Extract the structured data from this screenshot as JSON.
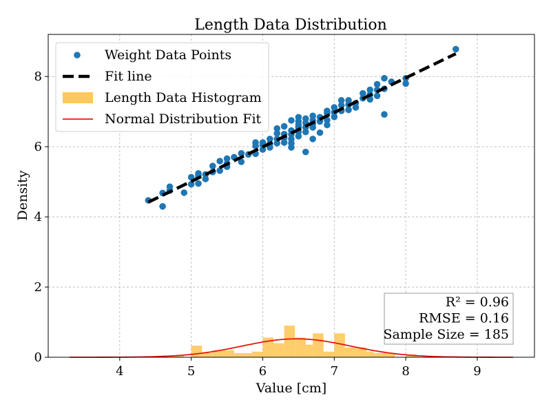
{
  "chart_data": {
    "type": "scatter",
    "title": "Length Data Distribution",
    "xlabel": "Value [cm]",
    "ylabel": "Density",
    "xlim": [
      3.0,
      9.8
    ],
    "ylim": [
      0,
      9.2
    ],
    "xticks": [
      4,
      5,
      6,
      7,
      8,
      9
    ],
    "yticks": [
      0,
      2,
      4,
      6,
      8
    ],
    "grid": true,
    "legend_position": "top-left",
    "colors": {
      "scatter": "#1f77b4",
      "fit_line": "#000000",
      "histogram": "#ffc85c",
      "normal_fit": "#e8140a"
    },
    "legend": [
      {
        "label": "Weight Data Points",
        "kind": "scatter"
      },
      {
        "label": "Fit line",
        "kind": "dashed-line"
      },
      {
        "label": "Length Data Histogram",
        "kind": "bar"
      },
      {
        "label": "Normal Distribution Fit",
        "kind": "line"
      }
    ],
    "series": [
      {
        "name": "Weight Data Points",
        "type": "scatter",
        "points": [
          [
            4.4,
            4.47
          ],
          [
            4.6,
            4.3
          ],
          [
            4.6,
            4.68
          ],
          [
            4.7,
            4.75
          ],
          [
            4.7,
            4.86
          ],
          [
            4.9,
            4.69
          ],
          [
            5.0,
            4.93
          ],
          [
            5.0,
            5.13
          ],
          [
            5.1,
            4.95
          ],
          [
            5.1,
            5.17
          ],
          [
            5.1,
            5.24
          ],
          [
            5.2,
            5.08
          ],
          [
            5.2,
            5.21
          ],
          [
            5.3,
            5.28
          ],
          [
            5.3,
            5.45
          ],
          [
            5.4,
            5.32
          ],
          [
            5.4,
            5.59
          ],
          [
            5.5,
            5.43
          ],
          [
            5.5,
            5.52
          ],
          [
            5.5,
            5.66
          ],
          [
            5.6,
            5.7
          ],
          [
            5.7,
            5.57
          ],
          [
            5.7,
            5.81
          ],
          [
            5.8,
            5.78
          ],
          [
            5.9,
            5.8
          ],
          [
            5.9,
            6.02
          ],
          [
            5.9,
            6.12
          ],
          [
            6.0,
            5.92
          ],
          [
            6.0,
            6.05
          ],
          [
            6.0,
            6.12
          ],
          [
            6.1,
            5.98
          ],
          [
            6.1,
            6.08
          ],
          [
            6.1,
            6.22
          ],
          [
            6.2,
            6.1
          ],
          [
            6.2,
            6.22
          ],
          [
            6.2,
            6.38
          ],
          [
            6.2,
            6.52
          ],
          [
            6.3,
            6.12
          ],
          [
            6.3,
            6.25
          ],
          [
            6.3,
            6.36
          ],
          [
            6.3,
            6.58
          ],
          [
            6.4,
            5.98
          ],
          [
            6.4,
            6.1
          ],
          [
            6.4,
            6.22
          ],
          [
            6.4,
            6.35
          ],
          [
            6.4,
            6.46
          ],
          [
            6.4,
            6.75
          ],
          [
            6.5,
            6.3
          ],
          [
            6.5,
            6.42
          ],
          [
            6.5,
            6.55
          ],
          [
            6.5,
            6.62
          ],
          [
            6.5,
            6.72
          ],
          [
            6.5,
            6.84
          ],
          [
            6.6,
            5.85
          ],
          [
            6.6,
            6.42
          ],
          [
            6.6,
            6.55
          ],
          [
            6.6,
            6.68
          ],
          [
            6.6,
            6.8
          ],
          [
            6.7,
            6.22
          ],
          [
            6.7,
            6.55
          ],
          [
            6.7,
            6.65
          ],
          [
            6.7,
            6.75
          ],
          [
            6.7,
            6.88
          ],
          [
            6.8,
            6.4
          ],
          [
            6.8,
            6.72
          ],
          [
            6.8,
            6.84
          ],
          [
            6.9,
            6.62
          ],
          [
            6.9,
            6.76
          ],
          [
            6.9,
            6.95
          ],
          [
            6.9,
            7.02
          ],
          [
            7.0,
            6.85
          ],
          [
            7.0,
            6.98
          ],
          [
            7.0,
            7.12
          ],
          [
            7.1,
            7.02
          ],
          [
            7.1,
            7.18
          ],
          [
            7.1,
            7.32
          ],
          [
            7.2,
            7.05
          ],
          [
            7.2,
            7.2
          ],
          [
            7.2,
            7.32
          ],
          [
            7.3,
            7.12
          ],
          [
            7.3,
            7.24
          ],
          [
            7.4,
            7.38
          ],
          [
            7.4,
            7.52
          ],
          [
            7.5,
            7.35
          ],
          [
            7.5,
            7.48
          ],
          [
            7.5,
            7.62
          ],
          [
            7.6,
            7.45
          ],
          [
            7.6,
            7.62
          ],
          [
            7.6,
            7.78
          ],
          [
            7.7,
            6.92
          ],
          [
            7.7,
            7.65
          ],
          [
            7.7,
            7.95
          ],
          [
            7.8,
            7.85
          ],
          [
            8.0,
            7.8
          ],
          [
            8.0,
            7.95
          ],
          [
            8.7,
            8.78
          ]
        ]
      },
      {
        "name": "Fit line",
        "type": "line",
        "x": [
          4.4,
          8.7
        ],
        "y": [
          4.42,
          8.65
        ]
      },
      {
        "name": "Length Data Histogram",
        "type": "histogram",
        "bins": [
          [
            4.3,
            4.45,
            0.0
          ],
          [
            4.45,
            4.6,
            0.03
          ],
          [
            4.6,
            4.75,
            0.05
          ],
          [
            4.75,
            4.9,
            0.05
          ],
          [
            4.9,
            5.0,
            0.0
          ],
          [
            5.0,
            5.15,
            0.33
          ],
          [
            5.15,
            5.3,
            0.12
          ],
          [
            5.3,
            5.45,
            0.2
          ],
          [
            5.45,
            5.6,
            0.2
          ],
          [
            5.6,
            5.75,
            0.12
          ],
          [
            5.75,
            5.85,
            0.12
          ],
          [
            5.85,
            6.0,
            0.16
          ],
          [
            6.0,
            6.15,
            0.56
          ],
          [
            6.15,
            6.3,
            0.4
          ],
          [
            6.3,
            6.45,
            0.9
          ],
          [
            6.45,
            6.6,
            0.56
          ],
          [
            6.6,
            6.7,
            0.36
          ],
          [
            6.7,
            6.85,
            0.68
          ],
          [
            6.85,
            7.0,
            0.16
          ],
          [
            7.0,
            7.15,
            0.68
          ],
          [
            7.15,
            7.3,
            0.28
          ],
          [
            7.3,
            7.45,
            0.28
          ],
          [
            7.45,
            7.55,
            0.16
          ],
          [
            7.55,
            7.7,
            0.12
          ],
          [
            7.7,
            7.85,
            0.12
          ],
          [
            7.85,
            8.0,
            0.0
          ],
          [
            8.0,
            8.15,
            0.08
          ],
          [
            8.15,
            8.3,
            0.0
          ],
          [
            8.3,
            8.45,
            0.0
          ],
          [
            8.45,
            8.6,
            0.0
          ],
          [
            8.6,
            8.75,
            0.03
          ]
        ]
      },
      {
        "name": "Normal Distribution Fit",
        "type": "line",
        "mean": 6.47,
        "std": 0.76,
        "x_range": [
          3.3,
          9.5
        ]
      }
    ],
    "annotations": [
      "R² = 0.96",
      "RMSE = 0.16",
      "Sample Size = 185"
    ]
  }
}
